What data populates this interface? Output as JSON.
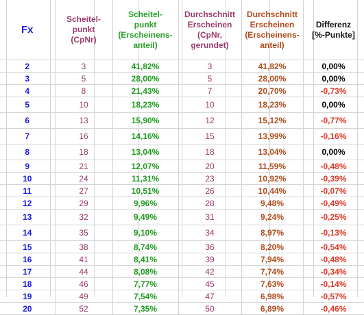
{
  "header": {
    "fx": "Fx",
    "scheitelpunkt_lines": [
      "Scheitel-",
      "punkt",
      "(CpNr)"
    ],
    "scheitelpunkt_anteil_lines": [
      "Scheitel-",
      "punkt",
      "(Erscheinens-",
      "anteil)"
    ],
    "durchschnitt_cpnr_lines": [
      "Durchschnitt",
      "Erscheinen",
      "(CpNr,",
      "gerundet)"
    ],
    "durchschnitt_anteil_lines": [
      "Durchschnitt",
      "Erscheinen",
      "(Erscheinens-",
      "anteil)"
    ],
    "differenz_lines": [
      "Differenz",
      "[%-Punkte]"
    ]
  },
  "colors": {
    "fx": "#1a1ae0",
    "cpnr": "#9b3b6e",
    "scheitel_anteil": "#1f9b1f",
    "durch_anteil": "#b04a1a",
    "negative": "#e03a2a",
    "zero": "#000000",
    "grid": "#d4d4d4"
  },
  "rows": [
    {
      "fx": "2",
      "scheitel_cp": "3",
      "scheitel_anteil": "41,82%",
      "durch_cp": "3",
      "durch_anteil": "41,82%",
      "differenz": "0,00%"
    },
    {
      "fx": "3",
      "scheitel_cp": "5",
      "scheitel_anteil": "28,00%",
      "durch_cp": "5",
      "durch_anteil": "28,00%",
      "differenz": "0,00%"
    },
    {
      "fx": "4",
      "scheitel_cp": "8",
      "scheitel_anteil": "21,43%",
      "durch_cp": "7",
      "durch_anteil": "20,70%",
      "differenz": "-0,73%"
    },
    {
      "fx": "5",
      "scheitel_cp": "10",
      "scheitel_anteil": "18,23%",
      "durch_cp": "10",
      "durch_anteil": "18,23%",
      "differenz": "0,00%"
    },
    {
      "fx": "6",
      "scheitel_cp": "13",
      "scheitel_anteil": "15,90%",
      "durch_cp": "12",
      "durch_anteil": "15,12%",
      "differenz": "-0,77%"
    },
    {
      "fx": "7",
      "scheitel_cp": "16",
      "scheitel_anteil": "14,16%",
      "durch_cp": "15",
      "durch_anteil": "13,99%",
      "differenz": "-0,16%"
    },
    {
      "fx": "8",
      "scheitel_cp": "18",
      "scheitel_anteil": "13,04%",
      "durch_cp": "18",
      "durch_anteil": "13,04%",
      "differenz": "0,00%"
    },
    {
      "fx": "9",
      "scheitel_cp": "21",
      "scheitel_anteil": "12,07%",
      "durch_cp": "20",
      "durch_anteil": "11,59%",
      "differenz": "-0,48%"
    },
    {
      "fx": "10",
      "scheitel_cp": "24",
      "scheitel_anteil": "11,31%",
      "durch_cp": "23",
      "durch_anteil": "10,92%",
      "differenz": "-0,39%"
    },
    {
      "fx": "11",
      "scheitel_cp": "27",
      "scheitel_anteil": "10,51%",
      "durch_cp": "26",
      "durch_anteil": "10,44%",
      "differenz": "-0,07%"
    },
    {
      "fx": "12",
      "scheitel_cp": "29",
      "scheitel_anteil": "9,96%",
      "durch_cp": "28",
      "durch_anteil": "9,48%",
      "differenz": "-0,49%"
    },
    {
      "fx": "13",
      "scheitel_cp": "32",
      "scheitel_anteil": "9,49%",
      "durch_cp": "31",
      "durch_anteil": "9,24%",
      "differenz": "-0,25%"
    },
    {
      "fx": "14",
      "scheitel_cp": "35",
      "scheitel_anteil": "9,10%",
      "durch_cp": "34",
      "durch_anteil": "8,97%",
      "differenz": "-0,13%"
    },
    {
      "fx": "15",
      "scheitel_cp": "38",
      "scheitel_anteil": "8,74%",
      "durch_cp": "36",
      "durch_anteil": "8,20%",
      "differenz": "-0,54%"
    },
    {
      "fx": "16",
      "scheitel_cp": "41",
      "scheitel_anteil": "8,41%",
      "durch_cp": "39",
      "durch_anteil": "7,94%",
      "differenz": "-0,48%"
    },
    {
      "fx": "17",
      "scheitel_cp": "44",
      "scheitel_anteil": "8,08%",
      "durch_cp": "42",
      "durch_anteil": "7,74%",
      "differenz": "-0,34%"
    },
    {
      "fx": "18",
      "scheitel_cp": "46",
      "scheitel_anteil": "7,77%",
      "durch_cp": "45",
      "durch_anteil": "7,63%",
      "differenz": "-0,14%"
    },
    {
      "fx": "19",
      "scheitel_cp": "49",
      "scheitel_anteil": "7,54%",
      "durch_cp": "47",
      "durch_anteil": "6,98%",
      "differenz": "-0,57%"
    },
    {
      "fx": "20",
      "scheitel_cp": "52",
      "scheitel_anteil": "7,35%",
      "durch_cp": "50",
      "durch_anteil": "6,89%",
      "differenz": "-0,46%"
    }
  ]
}
